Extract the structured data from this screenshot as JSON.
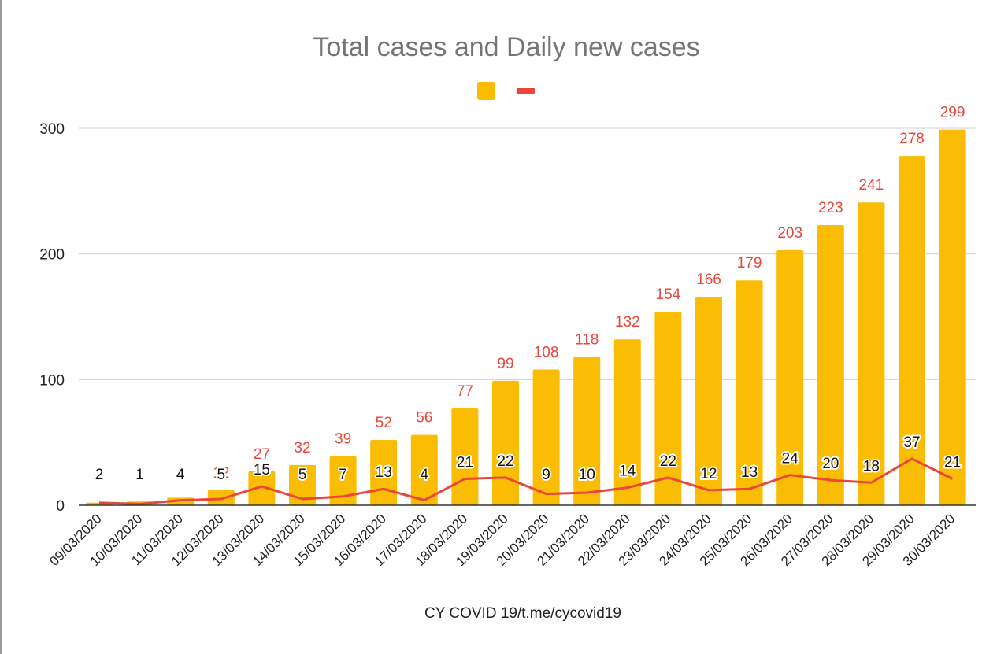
{
  "chart_data": {
    "type": "bar",
    "title": "Total cases and Daily new cases",
    "xlabel": "CY COVID 19/t.me/cycovid19",
    "ylabel": "",
    "ylim": [
      0,
      300
    ],
    "yticks": [
      "0",
      "100",
      "200",
      "300"
    ],
    "grid": true,
    "legend_position": "top-center",
    "categories": [
      "09/03/2020",
      "10/03/2020",
      "11/03/2020",
      "12/03/2020",
      "13/03/2020",
      "14/03/2020",
      "15/03/2020",
      "16/03/2020",
      "17/03/2020",
      "18/03/2020",
      "19/03/2020",
      "20/03/2020",
      "21/03/2020",
      "22/03/2020",
      "23/03/2020",
      "24/03/2020",
      "25/03/2020",
      "26/03/2020",
      "27/03/2020",
      "28/03/2020",
      "29/03/2020",
      "30/03/2020"
    ],
    "series": [
      {
        "type": "bar",
        "color": "#fbbc04",
        "label_color": "#e8473a",
        "values": [
          2,
          3,
          6,
          12,
          27,
          32,
          39,
          52,
          56,
          77,
          99,
          108,
          118,
          132,
          154,
          166,
          179,
          203,
          223,
          241,
          278,
          299
        ],
        "labels": [
          "",
          "",
          "",
          "12",
          "27",
          "32",
          "39",
          "52",
          "56",
          "77",
          "99",
          "108",
          "118",
          "132",
          "154",
          "166",
          "179",
          "203",
          "223",
          "241",
          "278",
          "299"
        ]
      },
      {
        "type": "line",
        "color": "#e8473a",
        "label_color": "#111111",
        "values": [
          2,
          1,
          4,
          5,
          15,
          5,
          7,
          13,
          4,
          21,
          22,
          9,
          10,
          14,
          22,
          12,
          13,
          24,
          20,
          18,
          37,
          21
        ],
        "labels": [
          "2",
          "1",
          "4",
          "5",
          "15",
          "5",
          "7",
          "13",
          "4",
          "21",
          "22",
          "9",
          "10",
          "14",
          "22",
          "12",
          "13",
          "24",
          "20",
          "18",
          "37",
          "21"
        ]
      }
    ]
  }
}
